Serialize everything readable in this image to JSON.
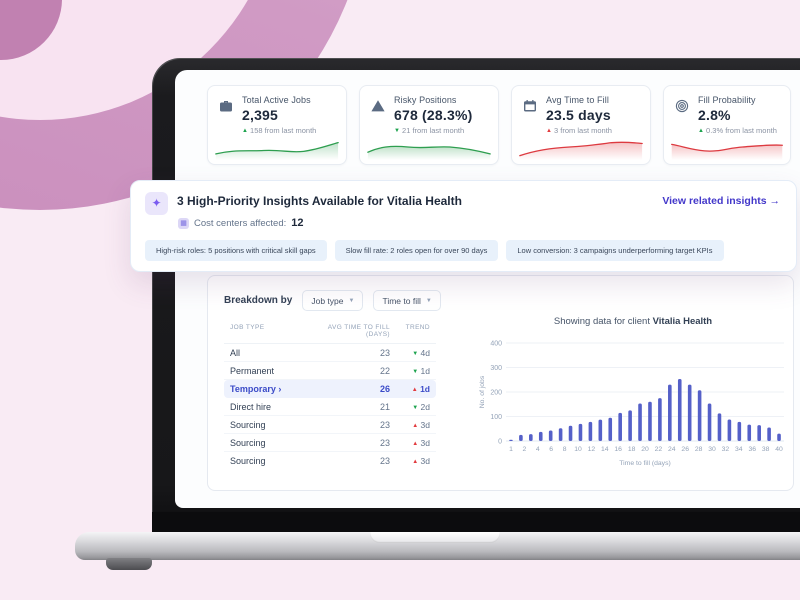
{
  "client": "Vitalia Health",
  "colors": {
    "green": "#1da34e",
    "red": "#e23b3f",
    "bar": "#5560c8",
    "link": "#4338ca",
    "selected_row": "#3b4bc8"
  },
  "kpi_cards": [
    {
      "icon": "briefcase-icon",
      "title": "Total Active Jobs",
      "value": "2,395",
      "delta_arrow": "up",
      "delta_color": "green",
      "delta_text": "158 from last month",
      "spark_color": "green"
    },
    {
      "icon": "warning-triangle-icon",
      "title": "Risky Positions",
      "value": "678 (28.3%)",
      "delta_arrow": "down",
      "delta_color": "green",
      "delta_text": "21 from last month",
      "spark_color": "green"
    },
    {
      "icon": "calendar-icon",
      "title": "Avg Time to Fill",
      "value": "23.5 days",
      "delta_arrow": "up",
      "delta_color": "red",
      "delta_text": "3 from last month",
      "spark_color": "red"
    },
    {
      "icon": "target-icon",
      "title": "Fill Probability",
      "value": "2.8%",
      "delta_arrow": "up",
      "delta_color": "green",
      "delta_text": "0.3% from last month",
      "spark_color": "red"
    }
  ],
  "insights_banner": {
    "title": "3 High-Priority Insights Available for Vitalia Health",
    "link_label": "View related insights",
    "link_arrow": "→",
    "cost_centers_label": "Cost centers affected:",
    "cost_centers_value": "12",
    "chips": [
      "High-risk roles: 5 positions with critical skill gaps",
      "Slow fill rate: 2 roles open for over 90 days",
      "Low conversion: 3 campaigns underperforming target KPIs"
    ]
  },
  "breakdown": {
    "label": "Breakdown by",
    "filters": [
      {
        "label": "Job type"
      },
      {
        "label": "Time to fill"
      }
    ],
    "table": {
      "headers": [
        "JOB TYPE",
        "AVG TIME TO FILL (DAYS)",
        "TREND"
      ],
      "rows": [
        {
          "job_type": "All",
          "value": "23",
          "trend": "4d",
          "trend_dir": "down",
          "trend_color": "green",
          "selected": false
        },
        {
          "job_type": "Permanent",
          "value": "22",
          "trend": "1d",
          "trend_dir": "down",
          "trend_color": "green",
          "selected": false
        },
        {
          "job_type": "Temporary ›",
          "value": "26",
          "trend": "1d",
          "trend_dir": "up",
          "trend_color": "red",
          "selected": true
        },
        {
          "job_type": "Direct hire",
          "value": "21",
          "trend": "2d",
          "trend_dir": "down",
          "trend_color": "green",
          "selected": false
        },
        {
          "job_type": "Sourcing",
          "value": "23",
          "trend": "3d",
          "trend_dir": "up",
          "trend_color": "red",
          "selected": false
        },
        {
          "job_type": "Sourcing",
          "value": "23",
          "trend": "3d",
          "trend_dir": "up",
          "trend_color": "red",
          "selected": false
        },
        {
          "job_type": "Sourcing",
          "value": "23",
          "trend": "3d",
          "trend_dir": "up",
          "trend_color": "red",
          "selected": false
        }
      ]
    }
  },
  "chart_data": {
    "type": "bar",
    "title_prefix": "Showing data for client",
    "title_client": "Vitalia Health",
    "xlabel": "Time to fill (days)",
    "ylabel": "No. of jobs",
    "ylim": [
      0,
      400
    ],
    "yticks": [
      0,
      100,
      200,
      300,
      400
    ],
    "xticks": [
      "1",
      "2",
      "4",
      "6",
      "8",
      "10",
      "12",
      "14",
      "16",
      "18",
      "20",
      "22",
      "24",
      "26",
      "28",
      "30",
      "32",
      "34",
      "36",
      "38",
      "40"
    ],
    "values": [
      5,
      25,
      28,
      37,
      43,
      52,
      62,
      70,
      78,
      87,
      95,
      115,
      125,
      153,
      160,
      175,
      230,
      253,
      230,
      207,
      153,
      113,
      88,
      78,
      67,
      65,
      55,
      30
    ],
    "grid": true,
    "legend": "none",
    "bar_color": "#5560c8"
  }
}
